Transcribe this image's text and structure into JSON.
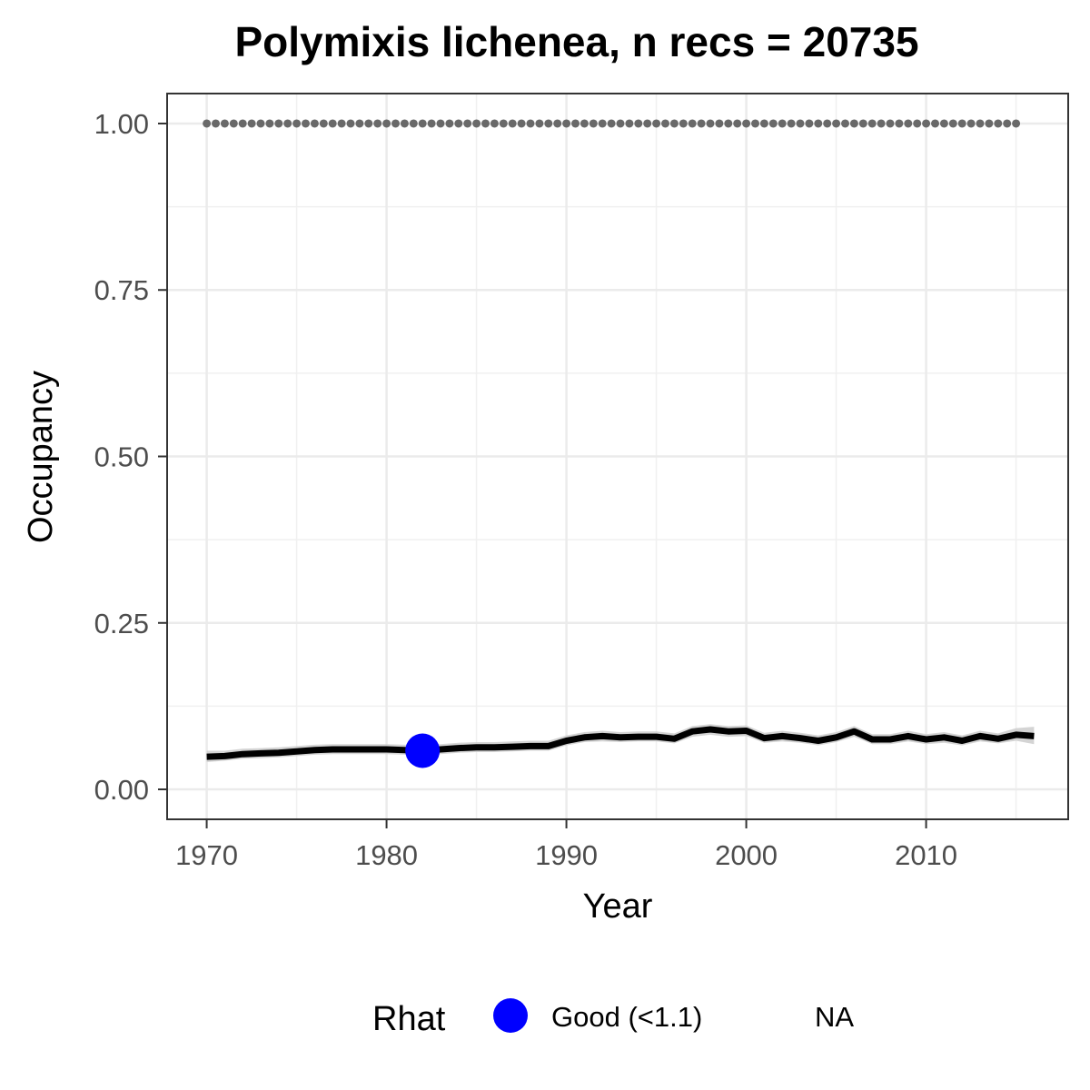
{
  "chart_data": {
    "type": "line",
    "title": "Polymixis lichenea, n recs = 20735",
    "xlabel": "Year",
    "ylabel": "Occupancy",
    "xlim": [
      1967.8,
      2017.9
    ],
    "ylim": [
      -0.045,
      1.045
    ],
    "x_ticks": [
      1970,
      1980,
      1990,
      2000,
      2010
    ],
    "x_tick_labels": [
      "1970",
      "1980",
      "1990",
      "2000",
      "2010"
    ],
    "y_ticks": [
      0,
      0.25,
      0.5,
      0.75,
      1.0
    ],
    "y_tick_labels": [
      "0.00",
      "0.25",
      "0.50",
      "0.75",
      "1.00"
    ],
    "grid": true,
    "series": [
      {
        "role": "occupancy-mean",
        "color": "#000000",
        "x": [
          1970,
          1971,
          1972,
          1973,
          1974,
          1975,
          1976,
          1977,
          1978,
          1979,
          1980,
          1981,
          1982,
          1983,
          1984,
          1985,
          1986,
          1987,
          1988,
          1989,
          1990,
          1991,
          1992,
          1993,
          1994,
          1995,
          1996,
          1997,
          1998,
          1999,
          2000,
          2001,
          2002,
          2003,
          2004,
          2005,
          2006,
          2007,
          2008,
          2009,
          2010,
          2011,
          2012,
          2013,
          2014,
          2015,
          2016
        ],
        "y": [
          0.049,
          0.05,
          0.053,
          0.054,
          0.055,
          0.057,
          0.059,
          0.06,
          0.06,
          0.06,
          0.06,
          0.059,
          0.058,
          0.06,
          0.062,
          0.063,
          0.063,
          0.064,
          0.065,
          0.065,
          0.073,
          0.078,
          0.08,
          0.078,
          0.079,
          0.079,
          0.076,
          0.087,
          0.09,
          0.087,
          0.088,
          0.077,
          0.08,
          0.077,
          0.073,
          0.078,
          0.087,
          0.075,
          0.075,
          0.08,
          0.075,
          0.078,
          0.073,
          0.08,
          0.076,
          0.082,
          0.08
        ],
        "lower": [
          0.041,
          0.043,
          0.046,
          0.047,
          0.048,
          0.05,
          0.052,
          0.053,
          0.053,
          0.053,
          0.053,
          0.052,
          0.051,
          0.053,
          0.055,
          0.056,
          0.056,
          0.057,
          0.058,
          0.058,
          0.066,
          0.071,
          0.072,
          0.071,
          0.072,
          0.072,
          0.069,
          0.079,
          0.082,
          0.079,
          0.08,
          0.07,
          0.072,
          0.07,
          0.066,
          0.071,
          0.079,
          0.068,
          0.068,
          0.072,
          0.068,
          0.07,
          0.066,
          0.072,
          0.069,
          0.073,
          0.068
        ],
        "upper": [
          0.058,
          0.058,
          0.061,
          0.062,
          0.063,
          0.065,
          0.067,
          0.068,
          0.068,
          0.068,
          0.068,
          0.067,
          0.066,
          0.068,
          0.07,
          0.071,
          0.071,
          0.072,
          0.073,
          0.073,
          0.081,
          0.086,
          0.088,
          0.086,
          0.087,
          0.087,
          0.084,
          0.095,
          0.098,
          0.095,
          0.096,
          0.085,
          0.088,
          0.085,
          0.081,
          0.086,
          0.095,
          0.083,
          0.083,
          0.088,
          0.083,
          0.086,
          0.081,
          0.088,
          0.084,
          0.092,
          0.094
        ]
      },
      {
        "role": "reference-line-at-1",
        "color": "#696969",
        "style": "dotted",
        "x_range": [
          1970,
          2015
        ],
        "y": 1.0
      }
    ],
    "points": [
      {
        "x": 1982,
        "y": 0.058,
        "rhat": "Good (<1.1)",
        "color": "#0000ff"
      }
    ],
    "legend": {
      "placement": "bottom",
      "title": "Rhat",
      "items": [
        {
          "label": "Good (<1.1)",
          "color": "#0000ff",
          "marker": "circle"
        },
        {
          "label": "NA",
          "color": null,
          "marker": "none"
        }
      ]
    }
  }
}
